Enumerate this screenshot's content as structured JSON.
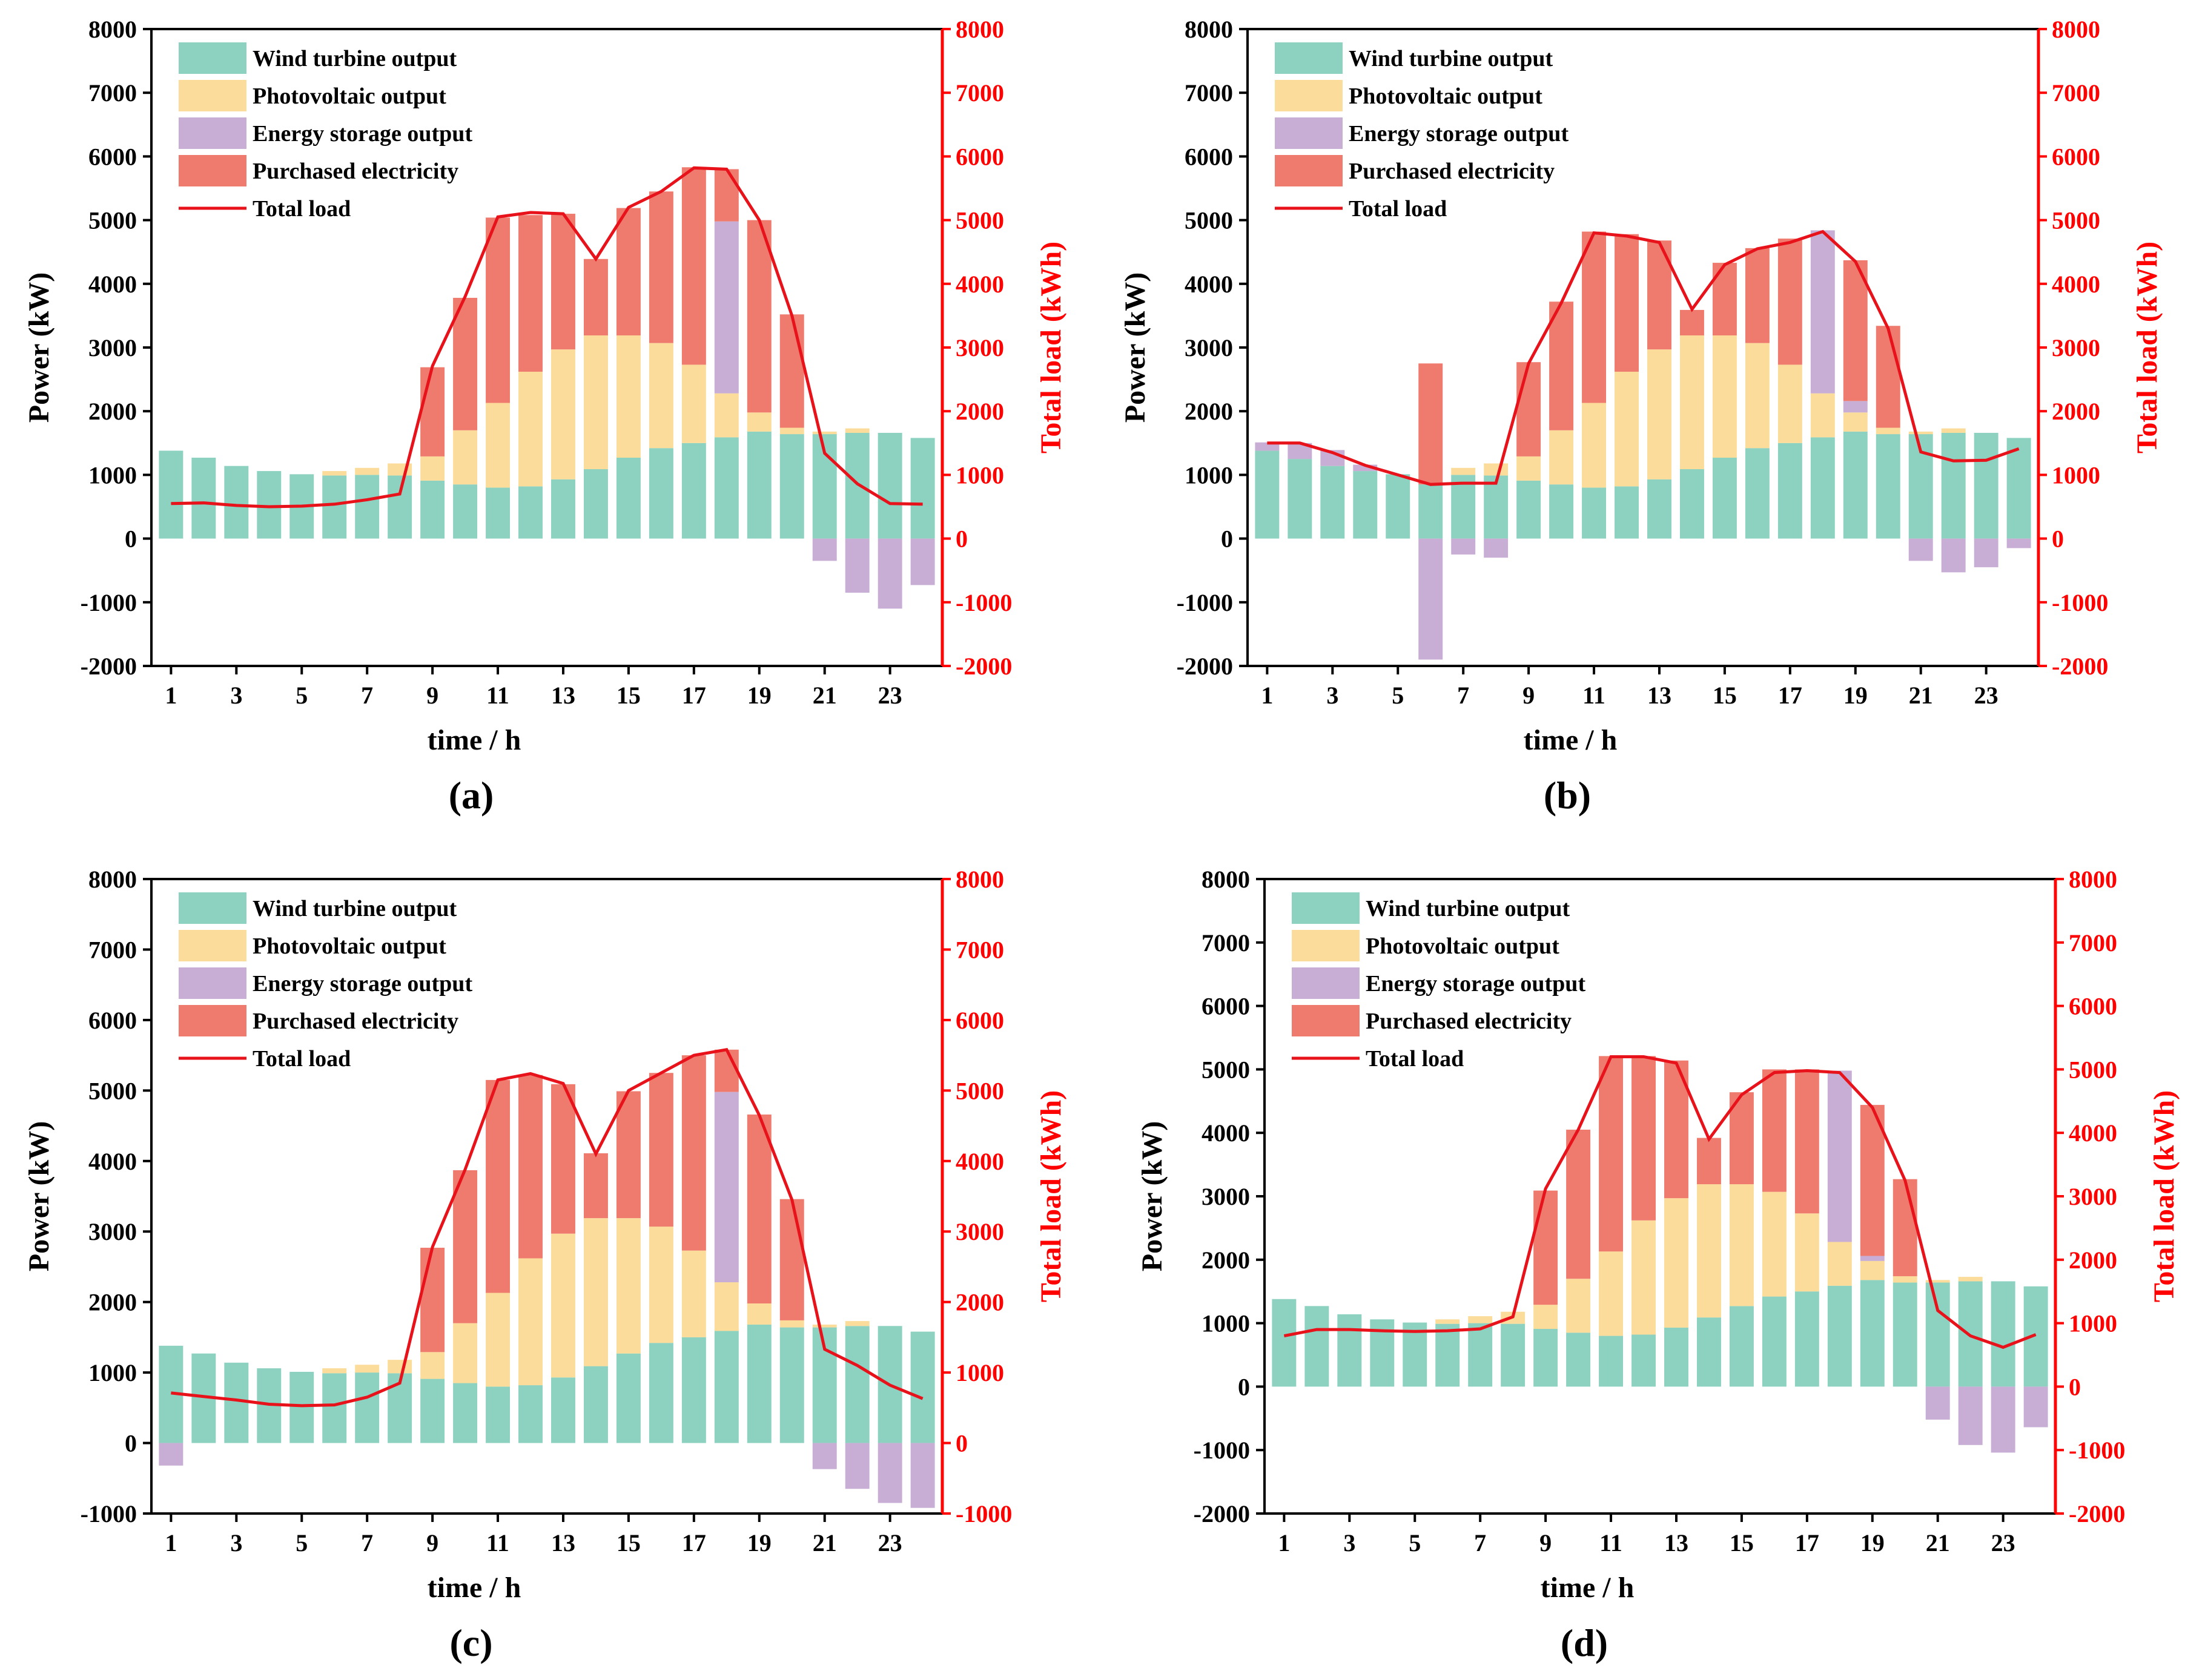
{
  "colors": {
    "wind": "#8dd1c0",
    "pv": "#fbdc9a",
    "storage": "#c8aed4",
    "purchase": "#ef7b6f",
    "load": "#e8121b",
    "axis": "#000000",
    "right_axis": "#ff0000"
  },
  "chart_data": [
    {
      "id": "a",
      "type": "bar",
      "label": "(a)",
      "xlabel": "time / h",
      "ylabel": "Power (kW)",
      "y2label": "Total load (kWh)",
      "ylim": [
        -2000,
        8000
      ],
      "y2lim": [
        -2000,
        8000
      ],
      "yticks": [
        -2000,
        -1000,
        0,
        1000,
        2000,
        3000,
        4000,
        5000,
        6000,
        7000,
        8000
      ],
      "xticks": [
        1,
        3,
        5,
        7,
        9,
        11,
        13,
        15,
        17,
        19,
        21,
        23
      ],
      "categories": [
        1,
        2,
        3,
        4,
        5,
        6,
        7,
        8,
        9,
        10,
        11,
        12,
        13,
        14,
        15,
        16,
        17,
        18,
        19,
        20,
        21,
        22,
        23,
        24
      ],
      "legend": [
        "Wind turbine output",
        "Photovoltaic output",
        "Energy storage output",
        "Purchased electricity",
        "Total load"
      ],
      "series": [
        {
          "name": "Wind turbine output",
          "values": [
            1380,
            1270,
            1140,
            1060,
            1010,
            990,
            1000,
            990,
            910,
            850,
            800,
            820,
            930,
            1090,
            1270,
            1420,
            1500,
            1590,
            1680,
            1640,
            1640,
            1660,
            1660,
            1580
          ]
        },
        {
          "name": "Photovoltaic output",
          "values": [
            0,
            0,
            0,
            0,
            0,
            70,
            110,
            190,
            380,
            850,
            1330,
            1800,
            2040,
            2100,
            1920,
            1650,
            1230,
            690,
            300,
            100,
            40,
            70,
            0,
            0
          ]
        },
        {
          "name": "Energy storage output",
          "values": [
            0,
            0,
            0,
            0,
            0,
            0,
            0,
            0,
            0,
            0,
            0,
            0,
            0,
            0,
            0,
            0,
            0,
            2700,
            0,
            0,
            -350,
            -850,
            -1100,
            -730
          ]
        },
        {
          "name": "Purchased electricity",
          "values": [
            0,
            0,
            0,
            0,
            0,
            0,
            0,
            0,
            1400,
            2080,
            2910,
            2460,
            2130,
            1200,
            2000,
            2380,
            3100,
            820,
            3020,
            1780,
            0,
            0,
            0,
            0
          ]
        },
        {
          "name": "Total load",
          "values": [
            550,
            560,
            520,
            500,
            510,
            540,
            610,
            700,
            2710,
            3800,
            5050,
            5120,
            5100,
            4390,
            5200,
            5450,
            5820,
            5800,
            5000,
            3500,
            1340,
            860,
            550,
            540
          ]
        }
      ]
    },
    {
      "id": "b",
      "type": "bar",
      "label": "(b)",
      "xlabel": "time / h",
      "ylabel": "Power (kW)",
      "y2label": "Total load (kWh)",
      "ylim": [
        -2000,
        8000
      ],
      "y2lim": [
        -2000,
        8000
      ],
      "yticks": [
        -2000,
        -1000,
        0,
        1000,
        2000,
        3000,
        4000,
        5000,
        6000,
        7000,
        8000
      ],
      "xticks": [
        1,
        3,
        5,
        7,
        9,
        11,
        13,
        15,
        17,
        19,
        21,
        23
      ],
      "categories": [
        1,
        2,
        3,
        4,
        5,
        6,
        7,
        8,
        9,
        10,
        11,
        12,
        13,
        14,
        15,
        16,
        17,
        18,
        19,
        20,
        21,
        22,
        23,
        24
      ],
      "legend": [
        "Wind turbine output",
        "Photovoltaic output",
        "Energy storage output",
        "Purchased electricity",
        "Total load"
      ],
      "series": [
        {
          "name": "Wind turbine output",
          "values": [
            1380,
            1250,
            1140,
            1060,
            1010,
            850,
            1000,
            990,
            910,
            850,
            800,
            820,
            930,
            1090,
            1270,
            1420,
            1500,
            1590,
            1680,
            1640,
            1640,
            1660,
            1660,
            1580
          ]
        },
        {
          "name": "Photovoltaic output",
          "values": [
            0,
            0,
            0,
            0,
            0,
            0,
            110,
            190,
            380,
            850,
            1330,
            1800,
            2040,
            2100,
            1920,
            1650,
            1230,
            690,
            300,
            100,
            40,
            70,
            0,
            0
          ]
        },
        {
          "name": "Energy storage output",
          "values": [
            130,
            250,
            250,
            100,
            0,
            -1900,
            -250,
            -300,
            0,
            0,
            0,
            0,
            0,
            0,
            0,
            0,
            0,
            2560,
            180,
            0,
            -350,
            -530,
            -450,
            -150
          ]
        },
        {
          "name": "Purchased electricity",
          "values": [
            0,
            0,
            0,
            0,
            0,
            1900,
            0,
            0,
            1480,
            2020,
            2690,
            2160,
            1710,
            400,
            1140,
            1490,
            1980,
            0,
            2210,
            1600,
            0,
            0,
            0,
            0
          ]
        },
        {
          "name": "Total load",
          "values": [
            1500,
            1500,
            1350,
            1150,
            1000,
            850,
            870,
            870,
            2750,
            3700,
            4800,
            4750,
            4650,
            3600,
            4300,
            4550,
            4650,
            4820,
            4350,
            3300,
            1360,
            1220,
            1230,
            1410
          ]
        }
      ]
    },
    {
      "id": "c",
      "type": "bar",
      "label": "(c)",
      "xlabel": "time / h",
      "ylabel": "Power (kW)",
      "y2label": "Total load (kWh)",
      "ylim": [
        -1000,
        8000
      ],
      "y2lim": [
        -1000,
        8000
      ],
      "yticks": [
        -1000,
        0,
        1000,
        2000,
        3000,
        4000,
        5000,
        6000,
        7000,
        8000
      ],
      "xticks": [
        1,
        3,
        5,
        7,
        9,
        11,
        13,
        15,
        17,
        19,
        21,
        23
      ],
      "categories": [
        1,
        2,
        3,
        4,
        5,
        6,
        7,
        8,
        9,
        10,
        11,
        12,
        13,
        14,
        15,
        16,
        17,
        18,
        19,
        20,
        21,
        22,
        23,
        24
      ],
      "legend": [
        "Wind turbine output",
        "Photovoltaic output",
        "Energy storage output",
        "Purchased electricity",
        "Total load"
      ],
      "series": [
        {
          "name": "Wind turbine output",
          "values": [
            1380,
            1270,
            1140,
            1060,
            1010,
            990,
            1000,
            990,
            910,
            850,
            800,
            820,
            930,
            1090,
            1270,
            1420,
            1500,
            1590,
            1680,
            1640,
            1640,
            1660,
            1660,
            1580
          ]
        },
        {
          "name": "Photovoltaic output",
          "values": [
            0,
            0,
            0,
            0,
            0,
            70,
            110,
            190,
            380,
            850,
            1330,
            1800,
            2040,
            2100,
            1920,
            1650,
            1230,
            690,
            300,
            100,
            40,
            70,
            0,
            0
          ]
        },
        {
          "name": "Energy storage output",
          "values": [
            -320,
            0,
            0,
            0,
            0,
            0,
            0,
            0,
            0,
            0,
            0,
            0,
            0,
            0,
            0,
            0,
            0,
            2700,
            0,
            0,
            -370,
            -650,
            -850,
            -920
          ]
        },
        {
          "name": "Purchased electricity",
          "values": [
            0,
            0,
            0,
            0,
            0,
            0,
            0,
            0,
            1480,
            2170,
            3020,
            2600,
            2120,
            920,
            1800,
            2180,
            2770,
            600,
            2680,
            1720,
            0,
            0,
            0,
            0
          ]
        },
        {
          "name": "Total load",
          "values": [
            710,
            660,
            610,
            550,
            530,
            540,
            650,
            850,
            2780,
            3880,
            5150,
            5240,
            5100,
            4100,
            5000,
            5250,
            5500,
            5580,
            4650,
            3450,
            1330,
            1100,
            820,
            630
          ]
        }
      ]
    },
    {
      "id": "d",
      "type": "bar",
      "label": "(d)",
      "xlabel": "time / h",
      "ylabel": "Power (kW)",
      "y2label": "Total load (kWh)",
      "ylim": [
        -2000,
        8000
      ],
      "y2lim": [
        -2000,
        8000
      ],
      "yticks": [
        -2000,
        -1000,
        0,
        1000,
        2000,
        3000,
        4000,
        5000,
        6000,
        7000,
        8000
      ],
      "xticks": [
        1,
        3,
        5,
        7,
        9,
        11,
        13,
        15,
        17,
        19,
        21,
        23
      ],
      "categories": [
        1,
        2,
        3,
        4,
        5,
        6,
        7,
        8,
        9,
        10,
        11,
        12,
        13,
        14,
        15,
        16,
        17,
        18,
        19,
        20,
        21,
        22,
        23,
        24
      ],
      "legend": [
        "Wind turbine output",
        "Photovoltaic output",
        "Energy storage output",
        "Purchased electricity",
        "Total load"
      ],
      "series": [
        {
          "name": "Wind turbine output",
          "values": [
            1380,
            1270,
            1140,
            1060,
            1010,
            990,
            1000,
            990,
            910,
            850,
            800,
            820,
            930,
            1090,
            1270,
            1420,
            1500,
            1590,
            1680,
            1640,
            1640,
            1660,
            1660,
            1580
          ]
        },
        {
          "name": "Photovoltaic output",
          "values": [
            0,
            0,
            0,
            0,
            0,
            70,
            110,
            190,
            380,
            850,
            1330,
            1800,
            2040,
            2100,
            1920,
            1650,
            1230,
            690,
            300,
            100,
            40,
            70,
            0,
            0
          ]
        },
        {
          "name": "Energy storage output",
          "values": [
            0,
            0,
            0,
            0,
            0,
            0,
            0,
            0,
            0,
            0,
            0,
            0,
            0,
            0,
            0,
            0,
            0,
            2700,
            80,
            0,
            -520,
            -920,
            -1040,
            -640
          ]
        },
        {
          "name": "Purchased electricity",
          "values": [
            0,
            0,
            0,
            0,
            0,
            0,
            0,
            0,
            1800,
            2350,
            3080,
            2590,
            2170,
            730,
            1450,
            1930,
            2270,
            0,
            2380,
            1530,
            0,
            0,
            0,
            0
          ]
        },
        {
          "name": "Total load",
          "values": [
            800,
            900,
            900,
            880,
            870,
            880,
            910,
            1100,
            3120,
            4050,
            5200,
            5200,
            5100,
            3900,
            4600,
            4950,
            4980,
            4950,
            4400,
            3250,
            1200,
            800,
            620,
            820
          ]
        }
      ]
    }
  ]
}
